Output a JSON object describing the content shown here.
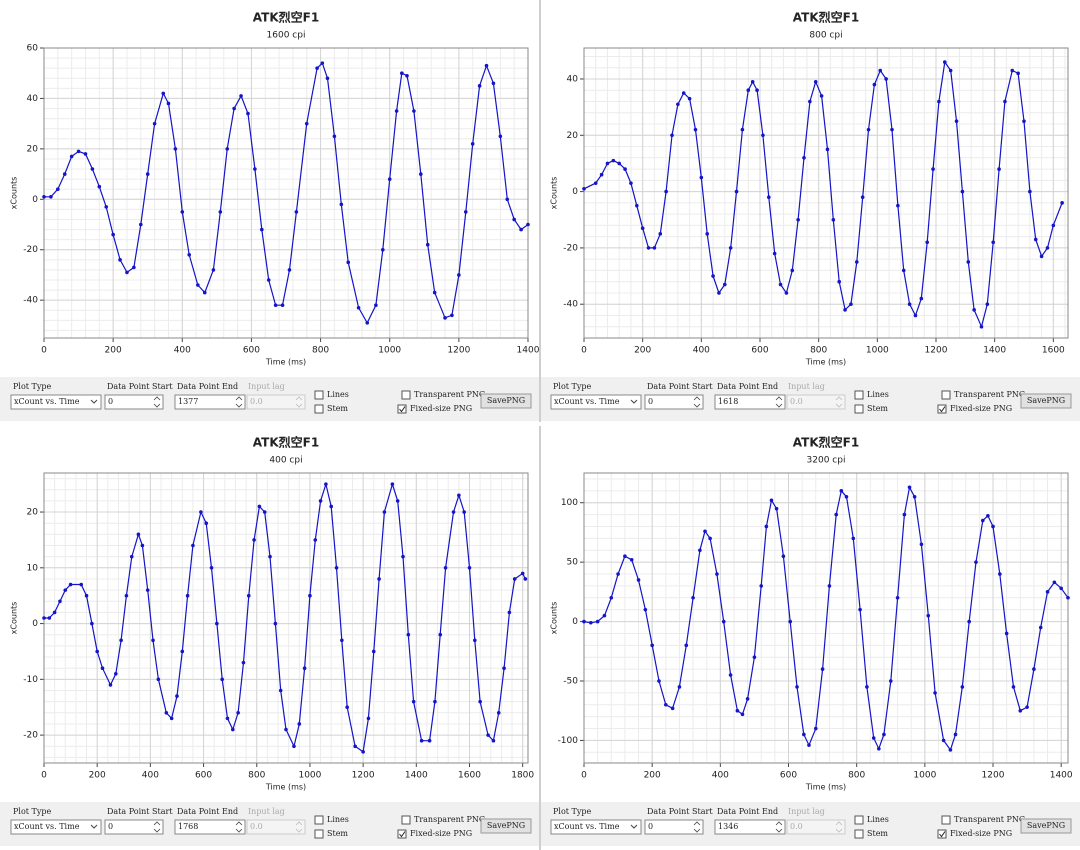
{
  "chart_data": [
    {
      "type": "line",
      "title": "ATK烈空F1",
      "subtitle": "1600 cpi",
      "x_label": "Time (ms)",
      "y_label": "xCounts",
      "color": "#1414c8",
      "grid": true,
      "xlim": [
        0,
        1400
      ],
      "ylim": [
        -55,
        60
      ],
      "xticks": [
        0,
        200,
        400,
        600,
        800,
        1000,
        1200,
        1400
      ],
      "yticks": [
        -40,
        -20,
        0,
        20,
        40,
        60
      ],
      "x": [
        0,
        20,
        40,
        60,
        80,
        100,
        120,
        140,
        160,
        180,
        200,
        220,
        240,
        260,
        280,
        300,
        320,
        345,
        360,
        380,
        400,
        420,
        445,
        465,
        490,
        510,
        530,
        550,
        570,
        590,
        610,
        630,
        650,
        670,
        690,
        710,
        730,
        760,
        790,
        805,
        820,
        840,
        860,
        880,
        910,
        935,
        960,
        980,
        1000,
        1020,
        1035,
        1050,
        1070,
        1090,
        1110,
        1130,
        1160,
        1180,
        1200,
        1220,
        1240,
        1260,
        1280,
        1300,
        1320,
        1340,
        1360,
        1380,
        1400
      ],
      "values": [
        1,
        1,
        4,
        10,
        17,
        19,
        18,
        12,
        5,
        -3,
        -14,
        -24,
        -29,
        -27,
        -10,
        10,
        30,
        42,
        38,
        20,
        -5,
        -22,
        -34,
        -37,
        -28,
        -5,
        20,
        36,
        41,
        34,
        12,
        -12,
        -32,
        -42,
        -42,
        -28,
        -5,
        30,
        52,
        54,
        48,
        25,
        -2,
        -25,
        -43,
        -49,
        -42,
        -20,
        8,
        35,
        50,
        49,
        35,
        10,
        -18,
        -37,
        -47,
        -46,
        -30,
        -5,
        22,
        45,
        53,
        46,
        25,
        0,
        -8,
        -12,
        -10
      ]
    },
    {
      "type": "line",
      "title": "ATK烈空F1",
      "subtitle": "800 cpi",
      "x_label": "Time (ms)",
      "y_label": "xCounts",
      "color": "#1414c8",
      "grid": true,
      "xlim": [
        0,
        1650
      ],
      "ylim": [
        -52,
        51
      ],
      "xticks": [
        0,
        200,
        400,
        600,
        800,
        1000,
        1200,
        1400,
        1600
      ],
      "yticks": [
        -40,
        -20,
        0,
        20,
        40
      ],
      "x": [
        0,
        40,
        60,
        80,
        100,
        120,
        140,
        160,
        180,
        200,
        220,
        240,
        260,
        280,
        300,
        320,
        340,
        360,
        380,
        400,
        420,
        440,
        460,
        480,
        500,
        520,
        540,
        560,
        575,
        590,
        610,
        630,
        650,
        670,
        690,
        710,
        730,
        750,
        770,
        790,
        810,
        830,
        850,
        870,
        890,
        910,
        930,
        950,
        970,
        990,
        1010,
        1030,
        1050,
        1070,
        1090,
        1110,
        1130,
        1150,
        1170,
        1190,
        1210,
        1230,
        1250,
        1270,
        1290,
        1310,
        1330,
        1355,
        1375,
        1395,
        1415,
        1435,
        1460,
        1480,
        1500,
        1520,
        1540,
        1560,
        1580,
        1600,
        1630
      ],
      "values": [
        1,
        3,
        6,
        10,
        11,
        10,
        8,
        3,
        -5,
        -13,
        -20,
        -20,
        -15,
        0,
        20,
        31,
        35,
        33,
        22,
        5,
        -15,
        -30,
        -36,
        -33,
        -20,
        0,
        22,
        36,
        39,
        36,
        20,
        -2,
        -22,
        -33,
        -36,
        -28,
        -10,
        12,
        32,
        39,
        34,
        15,
        -10,
        -32,
        -42,
        -40,
        -25,
        -2,
        22,
        38,
        43,
        40,
        22,
        -5,
        -28,
        -40,
        -44,
        -38,
        -18,
        8,
        32,
        46,
        43,
        25,
        0,
        -25,
        -42,
        -48,
        -40,
        -18,
        8,
        32,
        43,
        42,
        25,
        0,
        -17,
        -23,
        -20,
        -12,
        -4
      ]
    },
    {
      "type": "line",
      "title": "ATK烈空F1",
      "subtitle": "400 cpi",
      "x_label": "Time (ms)",
      "y_label": "xCounts",
      "color": "#1414c8",
      "grid": true,
      "xlim": [
        0,
        1820
      ],
      "ylim": [
        -25,
        27
      ],
      "xticks": [
        0,
        200,
        400,
        600,
        800,
        1000,
        1200,
        1400,
        1600,
        1800
      ],
      "yticks": [
        -20,
        -10,
        0,
        10,
        20
      ],
      "x": [
        0,
        20,
        40,
        60,
        80,
        100,
        140,
        160,
        180,
        200,
        220,
        250,
        270,
        290,
        310,
        330,
        355,
        370,
        390,
        410,
        430,
        460,
        480,
        500,
        520,
        540,
        560,
        590,
        610,
        630,
        650,
        670,
        690,
        710,
        730,
        750,
        770,
        790,
        810,
        830,
        850,
        870,
        890,
        910,
        940,
        960,
        980,
        1000,
        1020,
        1040,
        1060,
        1080,
        1100,
        1120,
        1140,
        1170,
        1200,
        1220,
        1240,
        1260,
        1280,
        1310,
        1330,
        1350,
        1370,
        1390,
        1420,
        1450,
        1470,
        1490,
        1510,
        1540,
        1560,
        1580,
        1600,
        1620,
        1640,
        1670,
        1690,
        1710,
        1730,
        1750,
        1770,
        1800,
        1810
      ],
      "values": [
        1,
        1,
        2,
        4,
        6,
        7,
        7,
        5,
        0,
        -5,
        -8,
        -11,
        -9,
        -3,
        5,
        12,
        16,
        14,
        6,
        -3,
        -10,
        -16,
        -17,
        -13,
        -5,
        5,
        14,
        20,
        18,
        10,
        0,
        -10,
        -17,
        -19,
        -16,
        -7,
        5,
        15,
        21,
        20,
        12,
        0,
        -12,
        -19,
        -22,
        -18,
        -8,
        5,
        15,
        22,
        25,
        21,
        10,
        -3,
        -15,
        -22,
        -23,
        -17,
        -5,
        8,
        20,
        25,
        22,
        12,
        -2,
        -14,
        -21,
        -21,
        -14,
        -2,
        10,
        20,
        23,
        20,
        10,
        -3,
        -14,
        -20,
        -21,
        -16,
        -8,
        2,
        8,
        9,
        8
      ]
    },
    {
      "type": "line",
      "title": "ATK烈空F1",
      "subtitle": "3200 cpi",
      "x_label": "Time (ms)",
      "y_label": "xCounts",
      "color": "#1414c8",
      "grid": true,
      "xlim": [
        0,
        1420
      ],
      "ylim": [
        -119,
        125
      ],
      "xticks": [
        0,
        200,
        400,
        600,
        800,
        1000,
        1200,
        1400
      ],
      "yticks": [
        -100,
        -50,
        0,
        50,
        100
      ],
      "x": [
        0,
        20,
        40,
        60,
        80,
        100,
        120,
        140,
        160,
        180,
        200,
        220,
        240,
        260,
        280,
        300,
        320,
        340,
        355,
        370,
        390,
        410,
        430,
        450,
        465,
        480,
        500,
        520,
        535,
        550,
        565,
        585,
        605,
        625,
        645,
        660,
        680,
        700,
        720,
        740,
        755,
        770,
        790,
        810,
        830,
        850,
        865,
        880,
        900,
        920,
        940,
        955,
        970,
        990,
        1010,
        1030,
        1055,
        1075,
        1090,
        1110,
        1130,
        1150,
        1170,
        1185,
        1200,
        1220,
        1240,
        1260,
        1280,
        1300,
        1320,
        1340,
        1360,
        1380,
        1400,
        1420
      ],
      "values": [
        0,
        -1,
        0,
        5,
        20,
        40,
        55,
        52,
        35,
        10,
        -20,
        -50,
        -70,
        -73,
        -55,
        -20,
        20,
        60,
        76,
        70,
        40,
        0,
        -45,
        -75,
        -78,
        -65,
        -30,
        30,
        80,
        102,
        95,
        55,
        0,
        -55,
        -95,
        -104,
        -90,
        -40,
        30,
        90,
        110,
        105,
        70,
        10,
        -55,
        -98,
        -107,
        -95,
        -50,
        20,
        90,
        113,
        105,
        65,
        5,
        -60,
        -100,
        -108,
        -95,
        -55,
        0,
        50,
        85,
        89,
        80,
        40,
        -10,
        -55,
        -75,
        -72,
        -40,
        -5,
        25,
        33,
        28,
        20
      ]
    }
  ],
  "controls": {
    "labels": {
      "plot_type": "Plot Type",
      "start": "Data Point Start",
      "end": "Data Point End",
      "input_lag": "Input lag",
      "lines": "Lines",
      "stem": "Stem",
      "transparent": "Transparent PNG",
      "fixed": "Fixed-size PNG",
      "save": "SavePNG"
    },
    "panels": [
      {
        "plot_type": "xCount vs. Time",
        "start": "0",
        "end": "1377",
        "input_lag": "0.0",
        "lines": false,
        "stem": false,
        "transparent": false,
        "fixed": true
      },
      {
        "plot_type": "xCount vs. Time",
        "start": "0",
        "end": "1618",
        "input_lag": "0.0",
        "lines": false,
        "stem": false,
        "transparent": false,
        "fixed": true
      },
      {
        "plot_type": "xCount vs. Time",
        "start": "0",
        "end": "1768",
        "input_lag": "0.0",
        "lines": false,
        "stem": false,
        "transparent": false,
        "fixed": true
      },
      {
        "plot_type": "xCount vs. Time",
        "start": "0",
        "end": "1346",
        "input_lag": "0.0",
        "lines": false,
        "stem": false,
        "transparent": false,
        "fixed": true
      }
    ]
  }
}
